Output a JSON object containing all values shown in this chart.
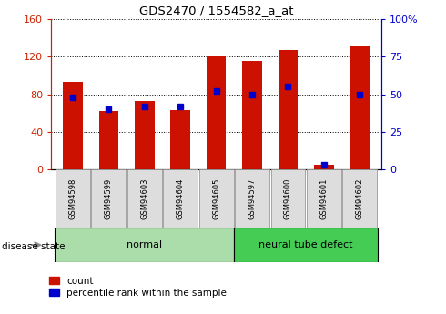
{
  "title": "GDS2470 / 1554582_a_at",
  "samples": [
    "GSM94598",
    "GSM94599",
    "GSM94603",
    "GSM94604",
    "GSM94605",
    "GSM94597",
    "GSM94600",
    "GSM94601",
    "GSM94602"
  ],
  "counts": [
    93,
    62,
    73,
    63,
    120,
    115,
    127,
    5,
    132
  ],
  "percentile_ranks": [
    48,
    40,
    42,
    42,
    52,
    50,
    55,
    3,
    50
  ],
  "groups": [
    {
      "label": "normal",
      "start": 0,
      "end": 5
    },
    {
      "label": "neural tube defect",
      "start": 5,
      "end": 9
    }
  ],
  "bar_color": "#CC1100",
  "blue_color": "#0000CC",
  "ylim_left": [
    0,
    160
  ],
  "ylim_right": [
    0,
    100
  ],
  "yticks_left": [
    0,
    40,
    80,
    120,
    160
  ],
  "yticks_right": [
    0,
    25,
    50,
    75,
    100
  ],
  "left_axis_color": "#CC2200",
  "right_axis_color": "#0000CC",
  "bar_width": 0.55,
  "figsize": [
    4.9,
    3.45
  ],
  "dpi": 100,
  "group_colors": [
    "#AADDAA",
    "#44CC55"
  ],
  "label_box_color": "#DDDDDD",
  "label_box_edge": "#AAAAAA"
}
